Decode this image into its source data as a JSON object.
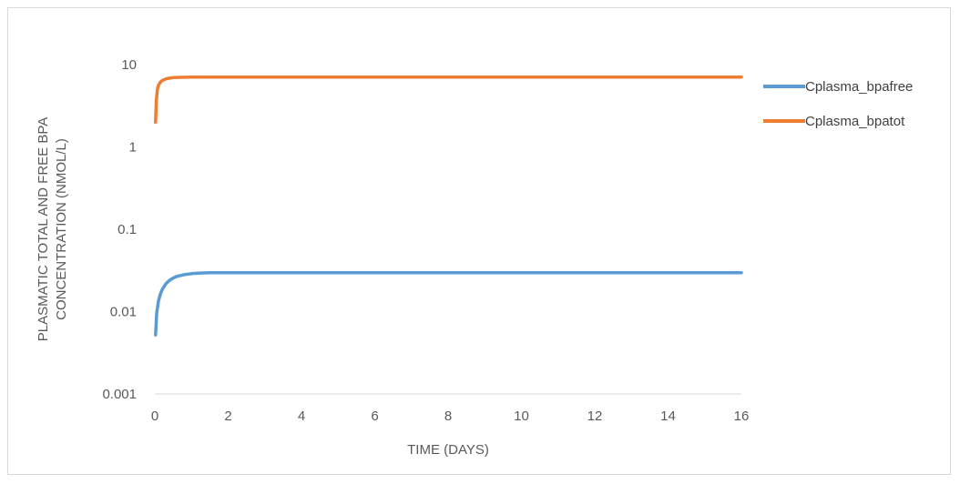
{
  "chart_data": {
    "type": "line",
    "title": "",
    "xlabel": "TIME (DAYS)",
    "ylabel_lines": [
      "PLASMATIC TOTAL AND FREE BPA",
      "CONCENTRATION (NMOL/L)"
    ],
    "xlim": [
      0,
      16
    ],
    "x_ticks": [
      0,
      2,
      4,
      6,
      8,
      10,
      12,
      14,
      16
    ],
    "x_tick_labels": [
      "0",
      "2",
      "4",
      "6",
      "8",
      "10",
      "12",
      "14",
      "16"
    ],
    "ylim": [
      0.001,
      10
    ],
    "y_scale": "log",
    "y_ticks": [
      0.001,
      0.01,
      0.1,
      1,
      10
    ],
    "y_tick_labels": [
      "0.001",
      "0.01",
      "0.1",
      "1",
      "10"
    ],
    "grid": "none",
    "legend_position": "right",
    "series": [
      {
        "name": "Cplasma_bpafree",
        "color": "#5b9bd5",
        "x": [
          0.02,
          0.05,
          0.1,
          0.15,
          0.2,
          0.3,
          0.4,
          0.5,
          0.6,
          0.8,
          1.0,
          1.2,
          1.5,
          2.0,
          3.0,
          4.0,
          6.0,
          8.0,
          10.0,
          12.0,
          14.0,
          16.0
        ],
        "y": [
          0.0052,
          0.0095,
          0.0135,
          0.0162,
          0.0185,
          0.0218,
          0.024,
          0.0256,
          0.0268,
          0.0281,
          0.0289,
          0.0293,
          0.0296,
          0.0297,
          0.0297,
          0.0297,
          0.0297,
          0.0297,
          0.0297,
          0.0297,
          0.0297,
          0.0297
        ]
      },
      {
        "name": "Cplasma_bpatot",
        "color": "#ed7d31",
        "x": [
          0.02,
          0.04,
          0.07,
          0.1,
          0.15,
          0.2,
          0.3,
          0.4,
          0.5,
          0.7,
          1.0,
          1.5,
          2.0,
          4.0,
          6.0,
          8.0,
          10.0,
          12.0,
          14.0,
          16.0
        ],
        "y": [
          2.0,
          3.6,
          5.0,
          5.6,
          6.1,
          6.4,
          6.7,
          6.85,
          6.95,
          7.0,
          7.05,
          7.05,
          7.05,
          7.05,
          7.05,
          7.05,
          7.05,
          7.05,
          7.05,
          7.05
        ]
      }
    ]
  }
}
